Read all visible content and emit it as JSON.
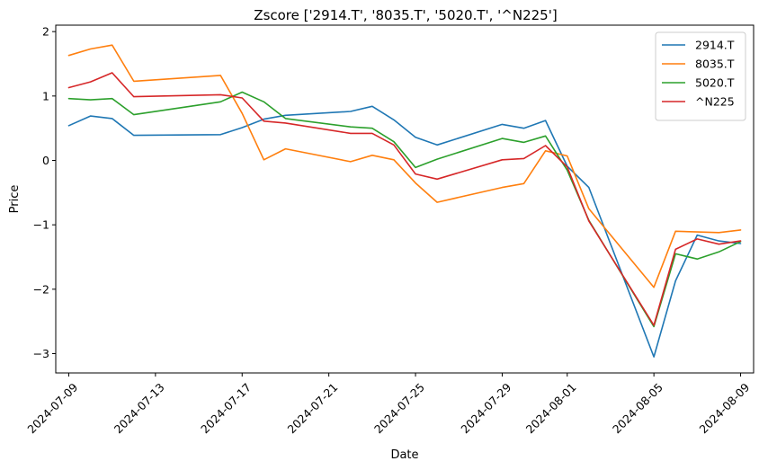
{
  "chart_data": {
    "type": "line",
    "title": "Zscore ['2914.T', '8035.T', '5020.T', '^N225']",
    "xlabel": "Date",
    "ylabel": "Price",
    "xlim": [
      "2024-07-08T09:36",
      "2024-08-09T14:24"
    ],
    "ylim": [
      -3.3,
      2.1
    ],
    "xticks": [
      "2024-07-09",
      "2024-07-13",
      "2024-07-17",
      "2024-07-21",
      "2024-07-25",
      "2024-07-29",
      "2024-08-01",
      "2024-08-05",
      "2024-08-09"
    ],
    "yticks": [
      -3,
      -2,
      -1,
      0,
      1,
      2
    ],
    "ytick_labels": [
      "−3",
      "−2",
      "−1",
      "0",
      "1",
      "2"
    ],
    "legend_position": "top-right",
    "x": [
      "2024-07-09",
      "2024-07-10",
      "2024-07-11",
      "2024-07-12",
      "2024-07-16",
      "2024-07-17",
      "2024-07-18",
      "2024-07-19",
      "2024-07-22",
      "2024-07-23",
      "2024-07-24",
      "2024-07-25",
      "2024-07-26",
      "2024-07-29",
      "2024-07-30",
      "2024-07-31",
      "2024-08-01",
      "2024-08-02",
      "2024-08-05",
      "2024-08-06",
      "2024-08-07",
      "2024-08-08",
      "2024-08-09"
    ],
    "series": [
      {
        "name": "2914.T",
        "color": "#1f77b4",
        "values": [
          0.54,
          0.69,
          0.65,
          0.39,
          0.4,
          0.51,
          0.64,
          0.7,
          0.76,
          0.84,
          0.63,
          0.36,
          0.24,
          0.56,
          0.5,
          0.62,
          -0.09,
          -0.42,
          -3.05,
          -1.87,
          -1.16,
          -1.25,
          -1.29
        ]
      },
      {
        "name": "8035.T",
        "color": "#ff7f0e",
        "values": [
          1.63,
          1.73,
          1.79,
          1.23,
          1.32,
          0.73,
          0.01,
          0.18,
          -0.02,
          0.08,
          0.01,
          -0.35,
          -0.65,
          -0.42,
          -0.36,
          0.15,
          0.07,
          -0.75,
          -1.97,
          -1.1,
          -1.11,
          -1.12,
          -1.08
        ]
      },
      {
        "name": "5020.T",
        "color": "#2ca02c",
        "values": [
          0.96,
          0.94,
          0.96,
          0.71,
          0.91,
          1.06,
          0.91,
          0.65,
          0.52,
          0.5,
          0.29,
          -0.11,
          0.02,
          0.34,
          0.28,
          0.38,
          -0.15,
          -0.93,
          -2.58,
          -1.45,
          -1.53,
          -1.42,
          -1.26
        ]
      },
      {
        "name": "^N225",
        "color": "#d62728",
        "values": [
          1.13,
          1.22,
          1.36,
          0.99,
          1.02,
          0.97,
          0.61,
          0.58,
          0.42,
          0.42,
          0.24,
          -0.21,
          -0.29,
          0.01,
          0.03,
          0.23,
          -0.1,
          -0.94,
          -2.56,
          -1.38,
          -1.22,
          -1.3,
          -1.25
        ]
      }
    ]
  }
}
